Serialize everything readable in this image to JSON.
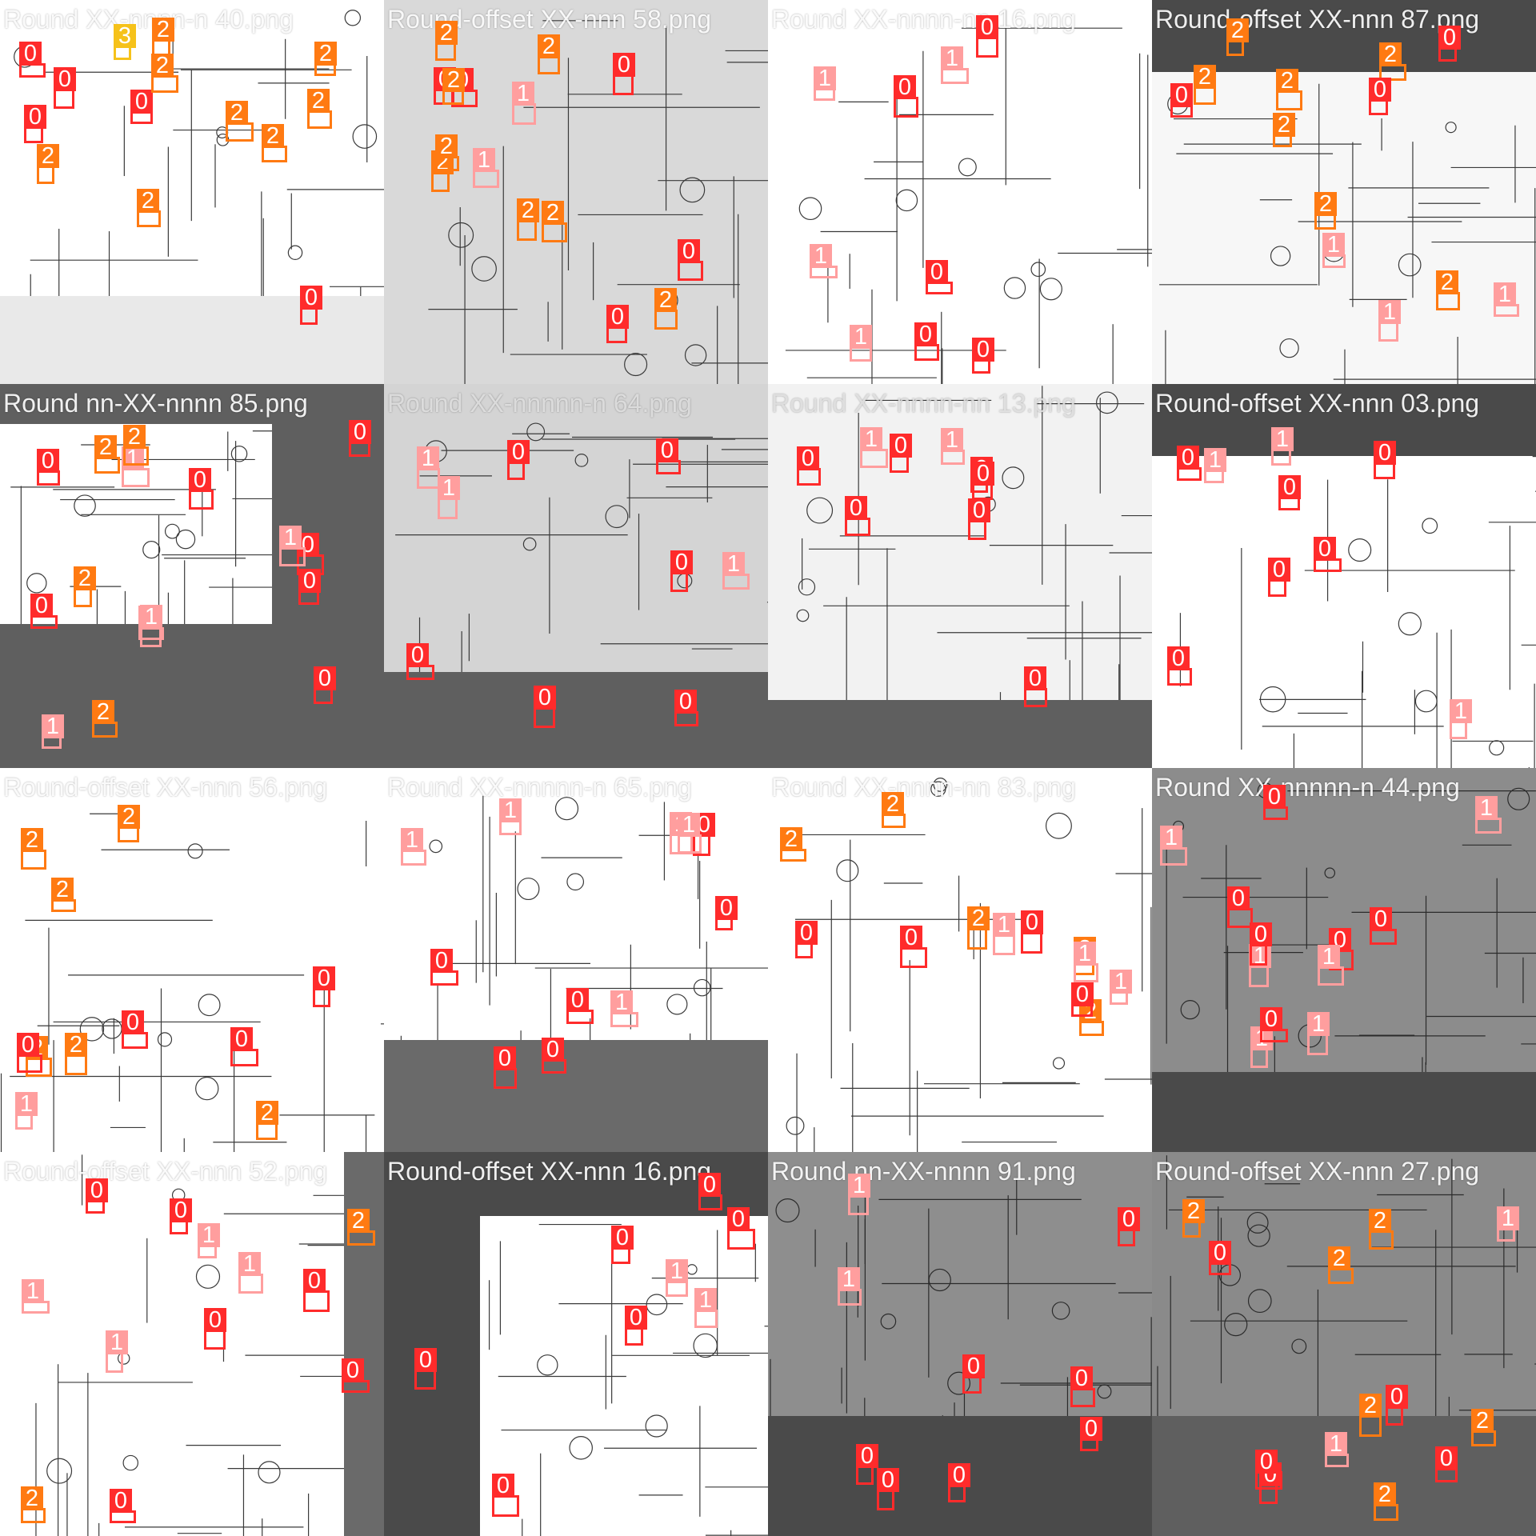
{
  "colors": {
    "class_0": "#ff2b2b",
    "class_1": "#ff9e9e",
    "class_2": "#ff7a12",
    "class_3": "#f6c21a",
    "background_gray": "#5f5f5f",
    "dark_gray": "#474747"
  },
  "tiles": [
    {
      "caption": "Round XX-nnnn-n 40.png",
      "classes": [
        "2",
        "0",
        "0",
        "0",
        "0",
        "0",
        "2",
        "2",
        "2",
        "2",
        "2",
        "3",
        "2",
        "2"
      ]
    },
    {
      "caption": "Round-offset XX-nnn 58.png",
      "classes": [
        "0",
        "1",
        "0",
        "0",
        "1",
        "0",
        "0",
        "2",
        "2",
        "2",
        "2",
        "2",
        "2",
        "2",
        "2"
      ]
    },
    {
      "caption": "Round XX-nnnn-nn 16.png",
      "classes": [
        "1",
        "0",
        "0",
        "1",
        "0",
        "1",
        "0",
        "1",
        "0"
      ]
    },
    {
      "caption": "Round-offset XX-nnn 87.png",
      "classes": [
        "0",
        "2",
        "2",
        "2",
        "2",
        "2",
        "2",
        "2",
        "1",
        "0",
        "1",
        "1",
        "0"
      ]
    },
    {
      "caption": "Round nn-XX-nnnn 85.png",
      "classes": [
        "1",
        "0",
        "0",
        "1",
        "1",
        "0",
        "0",
        "1",
        "1",
        "0",
        "0",
        "0",
        "2",
        "2",
        "2",
        "2"
      ]
    },
    {
      "caption": "Round XX-nnnnn-n 64.png",
      "classes": [
        "0",
        "0",
        "0",
        "1",
        "0",
        "1",
        "0",
        "1",
        "0"
      ]
    },
    {
      "caption": "Round XX-nnnn-nn 13.png",
      "classes": [
        "0",
        "1",
        "0",
        "0",
        "0",
        "0",
        "0",
        "1",
        "0"
      ]
    },
    {
      "caption": "Round-offset XX-nnn 03.png",
      "classes": [
        "0",
        "0",
        "0",
        "1",
        "1",
        "0",
        "0",
        "1",
        "0"
      ]
    },
    {
      "caption": "Round-offset XX-nnn 56.png",
      "classes": [
        "0",
        "0",
        "2",
        "2",
        "2",
        "2",
        "2",
        "2",
        "1",
        "0",
        "0"
      ]
    },
    {
      "caption": "Round XX-nnnnn-n 65.png",
      "classes": [
        "1",
        "0",
        "0",
        "0",
        "1",
        "1",
        "1",
        "0",
        "0",
        "1",
        "0"
      ]
    },
    {
      "caption": "Round XX-nnnn-nn 83.png",
      "classes": [
        "1",
        "0",
        "0",
        "2",
        "2",
        "2",
        "2",
        "2",
        "0",
        "1",
        "0",
        "1"
      ]
    },
    {
      "caption": "Round XX-nnnnn-n 44.png",
      "classes": [
        "1",
        "1",
        "0",
        "1",
        "0",
        "1",
        "0",
        "0",
        "0",
        "1",
        "0",
        "1"
      ]
    },
    {
      "caption": "Round-offset XX-nnn 52.png",
      "classes": [
        "0",
        "0",
        "1",
        "1",
        "0",
        "2",
        "2",
        "1",
        "1",
        "0",
        "0",
        "0"
      ]
    },
    {
      "caption": "Round-offset XX-nnn 16.png",
      "classes": [
        "1",
        "0",
        "0",
        "0",
        "0",
        "0",
        "1",
        "0"
      ]
    },
    {
      "caption": "Round nn-XX-nnnn 91.png",
      "classes": [
        "1",
        "0",
        "0",
        "1",
        "0",
        "0",
        "0",
        "0",
        "0"
      ]
    },
    {
      "caption": "Round-offset XX-nnn 27.png",
      "classes": [
        "2",
        "2",
        "0",
        "0",
        "0",
        "1",
        "0",
        "2",
        "2",
        "2",
        "2",
        "0",
        "1"
      ]
    }
  ]
}
